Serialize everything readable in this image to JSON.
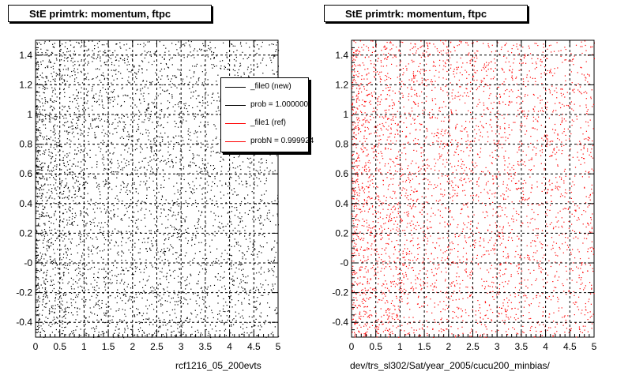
{
  "chart_data": [
    {
      "type": "scatter",
      "title": "StE primtrk: momentum, ftpc",
      "xlabel": "rcf1216_05_200evts",
      "ylabel": "",
      "xlim": [
        0,
        5
      ],
      "ylim": [
        -0.5,
        1.5
      ],
      "x_ticks": [
        "0",
        "0.5",
        "1",
        "1.5",
        "2",
        "2.5",
        "3",
        "3.5",
        "4",
        "4.5",
        "5"
      ],
      "y_ticks": [
        "-0.4",
        "-0.2",
        "-0",
        "0.2",
        "0.4",
        "0.6",
        "0.8",
        "1",
        "1.2",
        "1.4"
      ],
      "grid": true,
      "marker_color": "#000000",
      "point_count": 4200,
      "legend": {
        "placement": "top-right",
        "entries": [
          {
            "label": "_file0 (new)",
            "color": "#000000"
          },
          {
            "label": "prob = 1.000000",
            "color": "#000000"
          },
          {
            "label": "_file1 (ref)",
            "color": "#ff0000"
          },
          {
            "label": "probN = 0.999924",
            "color": "#ff0000"
          }
        ]
      }
    },
    {
      "type": "scatter",
      "title": "StE primtrk: momentum, ftpc",
      "xlabel": "dev/trs_sl302/Sat/year_2005/cucu200_minbias/",
      "ylabel": "",
      "xlim": [
        0,
        5
      ],
      "ylim": [
        -0.5,
        1.5
      ],
      "x_ticks": [
        "0",
        "0.5",
        "1",
        "1.5",
        "2",
        "2.5",
        "3",
        "3.5",
        "4",
        "4.5",
        "5"
      ],
      "y_ticks": [
        "-0.4",
        "-0.2",
        "-0",
        "0.2",
        "0.4",
        "0.6",
        "0.8",
        "1",
        "1.2",
        "1.4"
      ],
      "grid": true,
      "marker_color": "#ff0000",
      "point_count": 3800
    }
  ]
}
